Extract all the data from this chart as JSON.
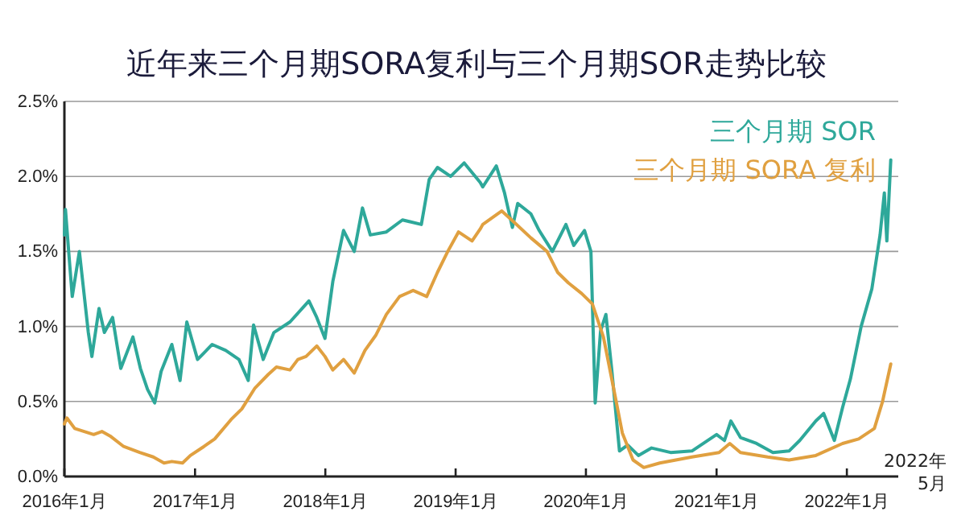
{
  "chart_data": {
    "type": "line",
    "title": "近年来三个月期SORA复利与三个月期SOR走势比较",
    "xlim": [
      "2016-01-01",
      "2022-05-25"
    ],
    "xticks": [
      {
        "value": "2016-01-01",
        "label": "2016年1月"
      },
      {
        "value": "2017-01-01",
        "label": "2017年1月"
      },
      {
        "value": "2018-01-01",
        "label": "2018年1月"
      },
      {
        "value": "2019-01-01",
        "label": "2019年1月"
      },
      {
        "value": "2020-01-01",
        "label": "2020年1月"
      },
      {
        "value": "2021-01-01",
        "label": "2021年1月"
      },
      {
        "value": "2022-01-01",
        "label": "2022年1月"
      }
    ],
    "annotations": [
      "2022年5月"
    ],
    "ylim": [
      0,
      2.5
    ],
    "yticks": [
      {
        "value": 0,
        "label": "0.0%"
      },
      {
        "value": 0.5,
        "label": "0.5%"
      },
      {
        "value": 1,
        "label": "1.0%"
      },
      {
        "value": 1.5,
        "label": "1.5%"
      },
      {
        "value": 2,
        "label": "2.0%"
      },
      {
        "value": 2.5,
        "label": "2.5%"
      }
    ],
    "grid": "y",
    "legend": "top right",
    "series": [
      {
        "name": "三个月期 SOR",
        "color": "#2ea89a",
        "x": [
          "2016-01-01",
          "2016-01-04",
          "2016-01-13",
          "2016-01-23",
          "2016-02-12",
          "2016-03-08",
          "2016-03-18",
          "2016-04-07",
          "2016-04-22",
          "2016-05-15",
          "2016-06-07",
          "2016-07-11",
          "2016-08-01",
          "2016-08-21",
          "2016-09-10",
          "2016-09-28",
          "2016-10-28",
          "2016-11-20",
          "2016-12-09",
          "2017-01-08",
          "2017-02-18",
          "2017-03-28",
          "2017-05-04",
          "2017-05-30",
          "2017-06-14",
          "2017-07-11",
          "2017-08-10",
          "2017-09-24",
          "2017-11-16",
          "2017-12-08",
          "2017-12-31",
          "2018-01-22",
          "2018-02-21",
          "2018-03-23",
          "2018-04-15",
          "2018-05-07",
          "2018-06-21",
          "2018-08-05",
          "2018-09-27",
          "2018-10-19",
          "2018-11-11",
          "2018-12-18",
          "2019-01-25",
          "2019-03-11",
          "2019-03-18",
          "2019-04-25",
          "2019-05-18",
          "2019-06-09",
          "2019-06-24",
          "2019-07-31",
          "2019-08-23",
          "2019-09-29",
          "2019-11-06",
          "2019-11-28",
          "2019-12-28",
          "2020-01-15",
          "2020-01-27",
          "2020-02-11",
          "2020-02-26",
          "2020-03-13",
          "2020-04-04",
          "2020-04-27",
          "2020-05-27",
          "2020-07-03",
          "2020-08-25",
          "2020-10-24",
          "2021-01-01",
          "2021-01-23",
          "2021-02-10",
          "2021-03-09",
          "2021-04-23",
          "2021-06-08",
          "2021-07-23",
          "2021-08-22",
          "2021-10-06",
          "2021-10-28",
          "2021-11-27",
          "2021-12-20",
          "2022-01-11",
          "2022-02-10",
          "2022-03-12",
          "2022-04-04",
          "2022-04-16",
          "2022-04-23",
          "2022-05-04"
        ],
        "values": [
          1.61,
          1.78,
          1.5,
          1.2,
          1.5,
          0.96,
          0.8,
          1.12,
          0.96,
          1.06,
          0.72,
          0.93,
          0.72,
          0.58,
          0.49,
          0.7,
          0.88,
          0.64,
          1.03,
          0.78,
          0.88,
          0.84,
          0.78,
          0.64,
          1.01,
          0.78,
          0.96,
          1.03,
          1.17,
          1.06,
          0.92,
          1.3,
          1.64,
          1.5,
          1.79,
          1.61,
          1.63,
          1.71,
          1.68,
          1.98,
          2.06,
          2.0,
          2.09,
          1.96,
          1.93,
          2.07,
          1.89,
          1.66,
          1.82,
          1.75,
          1.64,
          1.5,
          1.68,
          1.54,
          1.64,
          1.5,
          0.49,
          0.97,
          1.08,
          0.72,
          0.17,
          0.21,
          0.14,
          0.19,
          0.16,
          0.17,
          0.28,
          0.24,
          0.37,
          0.26,
          0.22,
          0.16,
          0.17,
          0.24,
          0.37,
          0.42,
          0.24,
          0.46,
          0.65,
          1.0,
          1.25,
          1.61,
          1.89,
          1.57,
          2.11
        ]
      },
      {
        "name": "三个月期 SORA 复利",
        "color": "#e0a040",
        "x": [
          "2016-01-01",
          "2016-01-08",
          "2016-01-30",
          "2016-03-23",
          "2016-04-15",
          "2016-05-08",
          "2016-06-15",
          "2016-07-30",
          "2016-09-06",
          "2016-10-06",
          "2016-10-28",
          "2016-11-27",
          "2016-12-19",
          "2017-01-26",
          "2017-02-25",
          "2017-04-12",
          "2017-05-12",
          "2017-06-18",
          "2017-07-25",
          "2017-08-17",
          "2017-09-24",
          "2017-10-16",
          "2017-11-08",
          "2017-12-08",
          "2017-12-31",
          "2018-01-22",
          "2018-02-21",
          "2018-03-23",
          "2018-04-22",
          "2018-05-22",
          "2018-06-21",
          "2018-07-28",
          "2018-09-04",
          "2018-10-12",
          "2018-11-11",
          "2018-12-10",
          "2019-01-09",
          "2019-02-16",
          "2019-03-11",
          "2019-03-18",
          "2019-05-10",
          "2019-06-16",
          "2019-07-31",
          "2019-09-14",
          "2019-10-14",
          "2019-11-13",
          "2019-12-20",
          "2020-01-19",
          "2020-02-19",
          "2020-03-20",
          "2020-04-12",
          "2020-05-12",
          "2020-06-11",
          "2020-07-26",
          "2020-10-24",
          "2021-01-08",
          "2021-02-07",
          "2021-03-09",
          "2021-05-24",
          "2021-07-23",
          "2021-10-06",
          "2021-12-20",
          "2022-02-03",
          "2022-03-19",
          "2022-04-11",
          "2022-05-04"
        ],
        "values": [
          0.35,
          0.39,
          0.32,
          0.28,
          0.3,
          0.27,
          0.2,
          0.16,
          0.13,
          0.09,
          0.1,
          0.09,
          0.14,
          0.2,
          0.25,
          0.38,
          0.45,
          0.59,
          0.68,
          0.73,
          0.71,
          0.78,
          0.8,
          0.87,
          0.8,
          0.71,
          0.78,
          0.69,
          0.84,
          0.94,
          1.08,
          1.2,
          1.24,
          1.2,
          1.36,
          1.5,
          1.63,
          1.57,
          1.65,
          1.68,
          1.77,
          1.69,
          1.59,
          1.5,
          1.36,
          1.29,
          1.22,
          1.15,
          0.93,
          0.57,
          0.29,
          0.11,
          0.06,
          0.09,
          0.13,
          0.16,
          0.22,
          0.16,
          0.13,
          0.11,
          0.14,
          0.22,
          0.25,
          0.32,
          0.5,
          0.75
        ]
      }
    ]
  }
}
